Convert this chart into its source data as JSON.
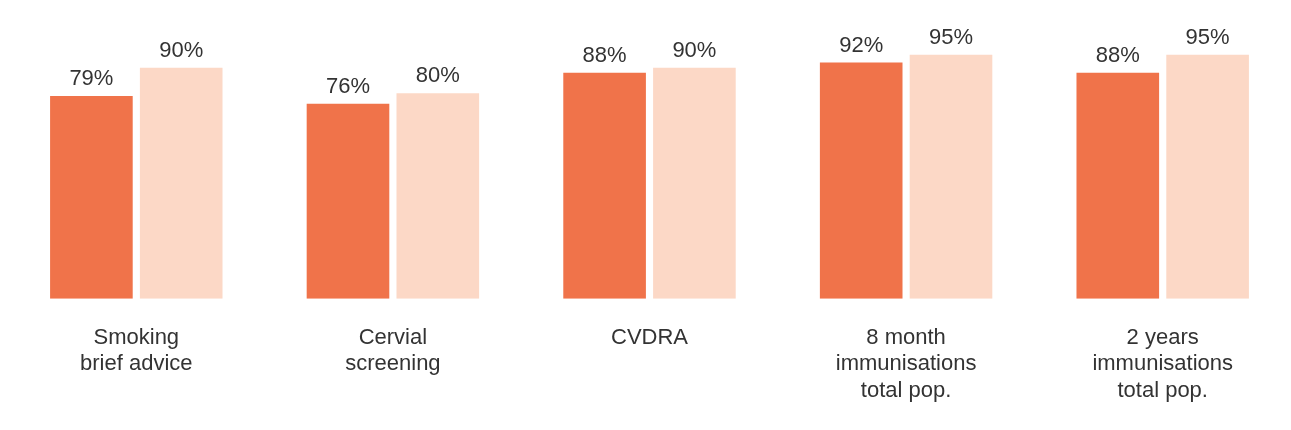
{
  "chart_data": {
    "type": "bar",
    "categories": [
      "Smoking\nbrief advice",
      "Cervial\nscreening",
      "CVDRA",
      "8 month\nimmunisations\ntotal pop.",
      "2 years\nimmunisations\ntotal pop."
    ],
    "series": [
      {
        "color": "#f0734a",
        "values": [
          79,
          76,
          88,
          92,
          88
        ],
        "value_labels": [
          "79%",
          "76%",
          "88%",
          "92%",
          "88%"
        ]
      },
      {
        "color": "#fcd8c6",
        "values": [
          90,
          80,
          90,
          95,
          95
        ],
        "value_labels": [
          "90%",
          "80%",
          "90%",
          "95%",
          "95%"
        ]
      }
    ],
    "relative": false,
    "grid": false,
    "legend": false
  }
}
